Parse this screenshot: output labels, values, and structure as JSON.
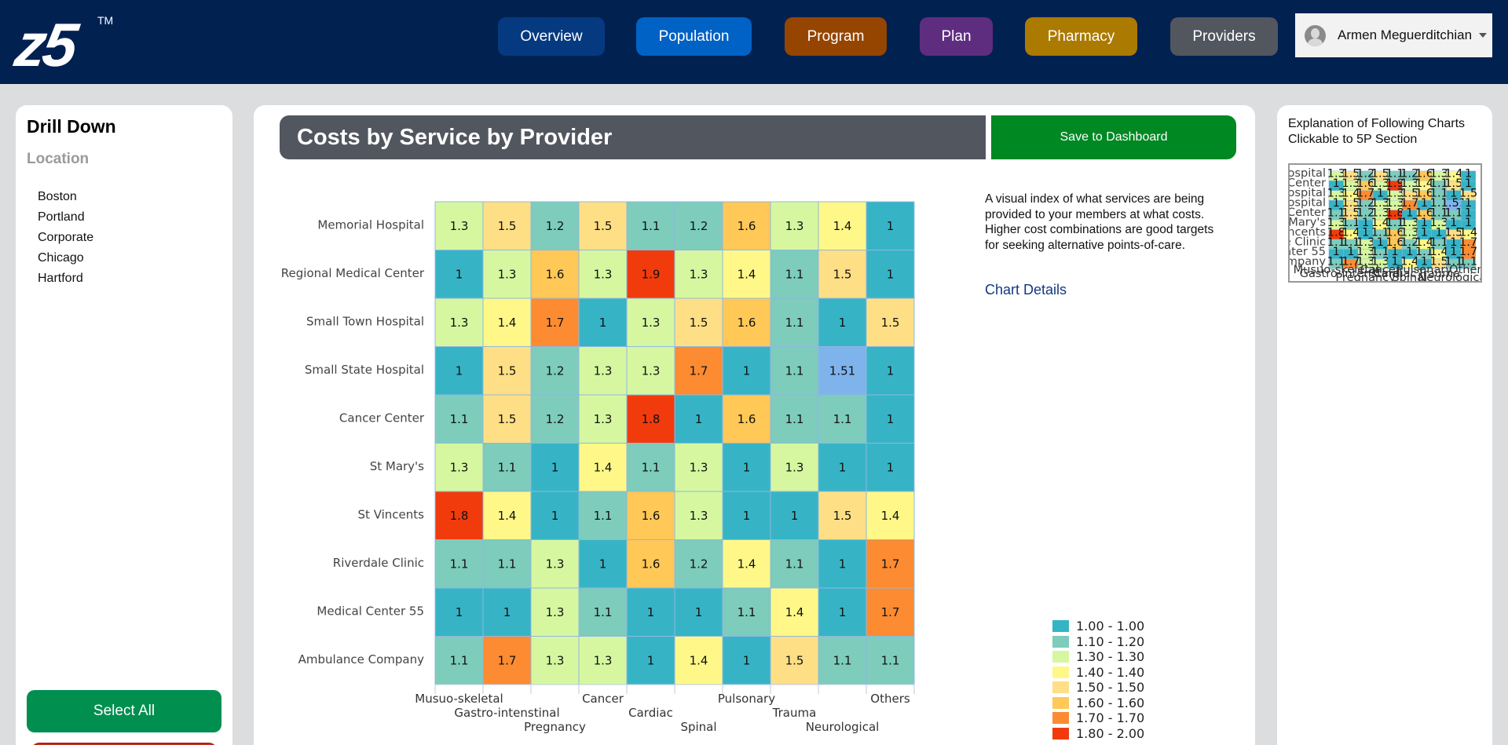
{
  "app": {
    "logo_text": "z5",
    "logo_tm": "TM"
  },
  "nav": {
    "buttons": [
      {
        "label": "Overview",
        "color": "#063a80"
      },
      {
        "label": "Population",
        "color": "#0062c4"
      },
      {
        "label": "Program",
        "color": "#954500"
      },
      {
        "label": "Plan",
        "color": "#5f2d80"
      },
      {
        "label": "Pharmacy",
        "color": "#ab7a00"
      },
      {
        "label": "Providers",
        "color": "#52565f"
      }
    ],
    "user_name": "Armen Meguerditchian"
  },
  "drilldown": {
    "title": "Drill Down",
    "subtitle": "Location",
    "locations": [
      "Boston",
      "Portland",
      "Corporate",
      "Chicago",
      "Hartford"
    ],
    "select_all_label": "Select All"
  },
  "main": {
    "title": "Costs by Service by Provider",
    "save_label": "Save to Dashboard",
    "description": "A visual index of what services are being provided to your members at what costs. Higher cost combinations are good targets for seeking alternative points-of-care.",
    "chart_details_label": "Chart Details"
  },
  "right_panel": {
    "title": "Explanation of Following Charts Clickable to 5P Section"
  },
  "chart_data": {
    "type": "heatmap",
    "title": "Costs by Service by Provider",
    "xlabel": "",
    "ylabel": "",
    "rows": [
      "Memorial Hospital",
      "Regional Medical Center",
      "Small Town Hospital",
      "Small State Hospital",
      "Cancer Center",
      "St Mary's",
      "St Vincents",
      "Riverdale Clinic",
      "Medical Center 55",
      "Ambulance Company"
    ],
    "columns": [
      "Musuo-skeletal",
      "Gastro-intenstinal",
      "Pregnancy",
      "Cancer",
      "Cardiac",
      "Spinal",
      "Pulsonary",
      "Trauma",
      "Neurological",
      "Others"
    ],
    "values": [
      [
        1.3,
        1.5,
        1.2,
        1.5,
        1.1,
        1.2,
        1.6,
        1.3,
        1.4,
        1
      ],
      [
        1,
        1.3,
        1.6,
        1.3,
        1.9,
        1.3,
        1.4,
        1.1,
        1.5,
        1
      ],
      [
        1.3,
        1.4,
        1.7,
        1,
        1.3,
        1.5,
        1.6,
        1.1,
        1,
        1.5
      ],
      [
        1,
        1.5,
        1.2,
        1.3,
        1.3,
        1.7,
        1,
        1.1,
        1.51,
        1
      ],
      [
        1.1,
        1.5,
        1.2,
        1.3,
        1.8,
        1,
        1.6,
        1.1,
        1.1,
        1
      ],
      [
        1.3,
        1.1,
        1,
        1.4,
        1.1,
        1.3,
        1,
        1.3,
        1,
        1
      ],
      [
        1.8,
        1.4,
        1,
        1.1,
        1.6,
        1.3,
        1,
        1,
        1.5,
        1.4
      ],
      [
        1.1,
        1.1,
        1.3,
        1,
        1.6,
        1.2,
        1.4,
        1.1,
        1,
        1.7
      ],
      [
        1,
        1,
        1.3,
        1.1,
        1,
        1,
        1.1,
        1.4,
        1,
        1.7
      ],
      [
        1.1,
        1.7,
        1.3,
        1.3,
        1,
        1.4,
        1,
        1.5,
        1.1,
        1.1
      ]
    ],
    "legend": {
      "placement": "bottom-right",
      "items": [
        {
          "label": "1.00 - 1.00",
          "color": "#36b4c6"
        },
        {
          "label": "1.10 - 1.20",
          "color": "#7dccbc"
        },
        {
          "label": "1.30 - 1.30",
          "color": "#d6f7a0"
        },
        {
          "label": "1.40 - 1.40",
          "color": "#fff888"
        },
        {
          "label": "1.50 - 1.50",
          "color": "#ffdf85"
        },
        {
          "label": "1.60 - 1.60",
          "color": "#ffc857"
        },
        {
          "label": "1.70 - 1.70",
          "color": "#fc8b31"
        },
        {
          "label": "1.80 - 2.00",
          "color": "#f23b0c"
        }
      ],
      "special": [
        {
          "value": 1.51,
          "color": "#7fb3ec"
        }
      ]
    }
  }
}
